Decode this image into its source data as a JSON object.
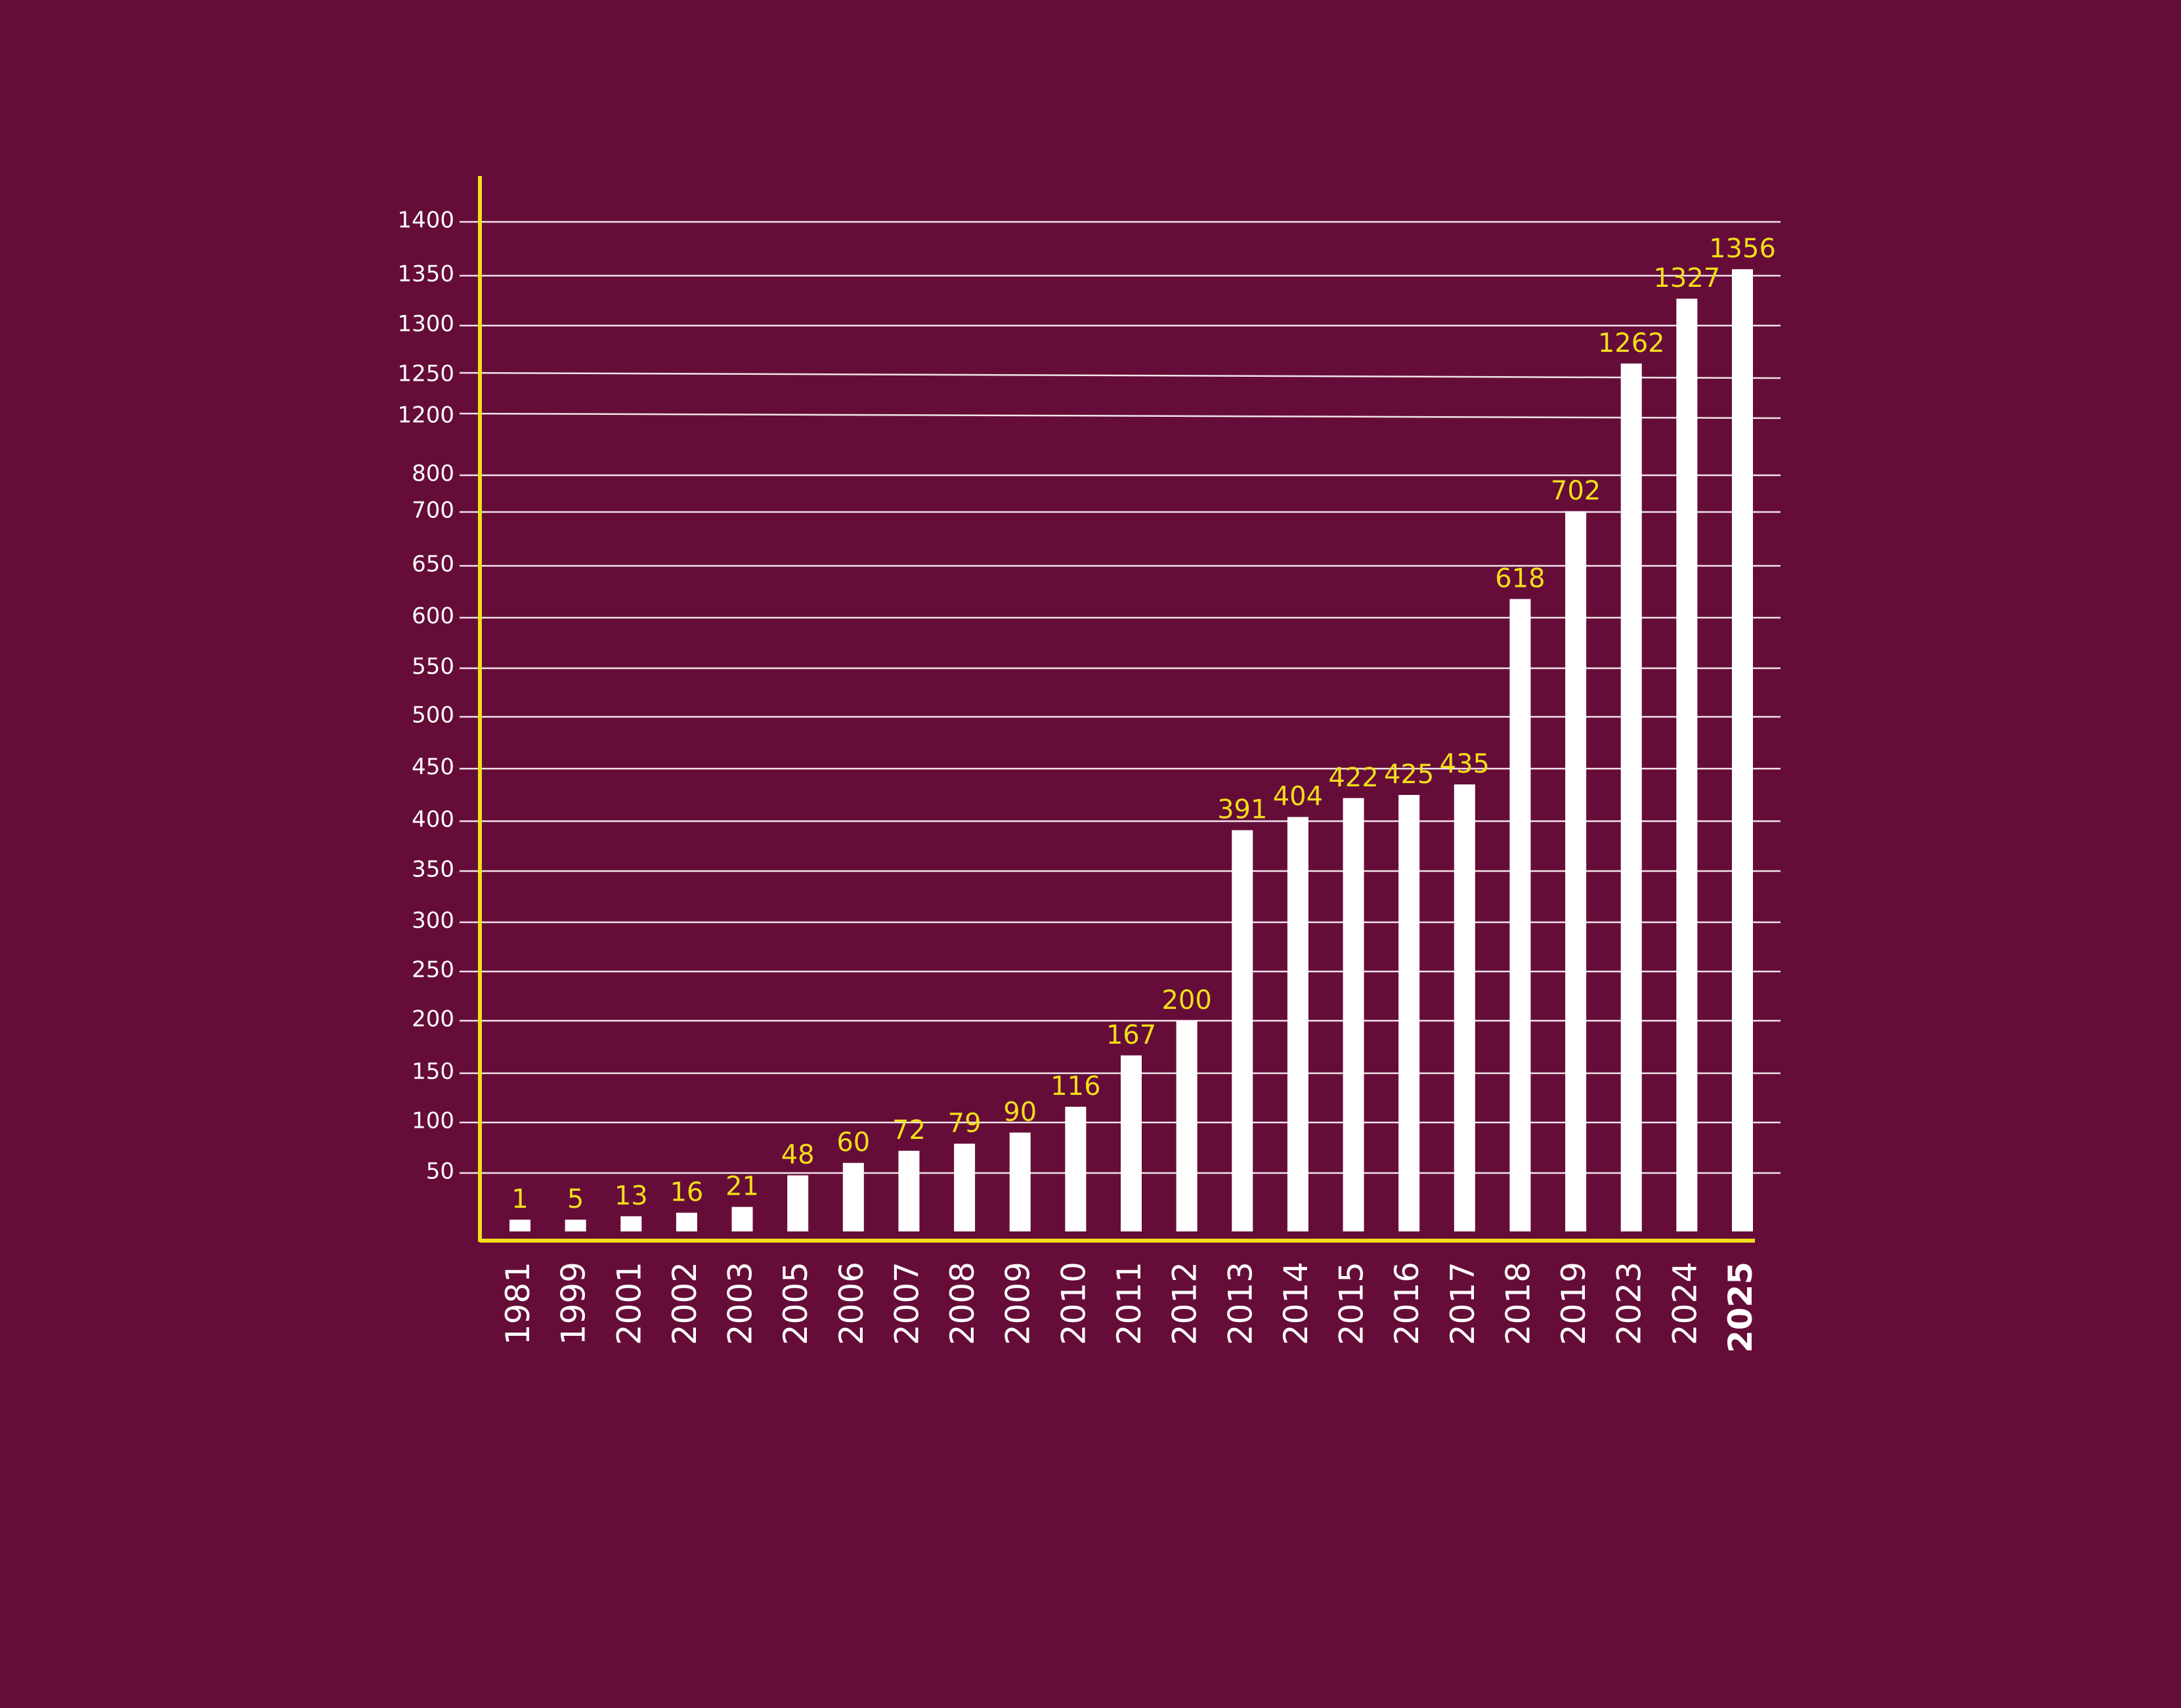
{
  "colors": {
    "background": "#650d38",
    "bar": "#ffffff",
    "axis": "#f2de1a",
    "value_label": "#f2de1a",
    "tick_label": "#ffffff",
    "grid": "#f1e4ea"
  },
  "chart_data": {
    "type": "bar",
    "grid": true,
    "y_scale": "piecewise (uneven tick spacing)",
    "y_tick_labels": [
      50,
      100,
      150,
      200,
      250,
      300,
      350,
      400,
      450,
      500,
      550,
      600,
      650,
      700,
      800,
      1200,
      1250,
      1300,
      1350,
      1400
    ],
    "categories": [
      "1981",
      "1999",
      "2001",
      "2002",
      "2003",
      "2005",
      "2006",
      "2007",
      "2008",
      "2009",
      "2010",
      "2011",
      "2012",
      "2013",
      "2014",
      "2015",
      "2016",
      "2017",
      "2018",
      "2019",
      "2023",
      "2024",
      "2025"
    ],
    "values": [
      1,
      5,
      13,
      16,
      21,
      48,
      60,
      72,
      79,
      90,
      116,
      167,
      200,
      391,
      404,
      422,
      425,
      435,
      618,
      702,
      1262,
      1327,
      1356
    ],
    "value_labels": [
      "1",
      "5",
      "13",
      "16",
      "21",
      "48",
      "60",
      "72",
      "79",
      "90",
      "116",
      "167",
      "200",
      "391",
      "404",
      "422",
      "425",
      "435",
      "618",
      "702",
      "1262",
      "1327",
      "1356"
    ],
    "emphasized_category": "2025"
  }
}
